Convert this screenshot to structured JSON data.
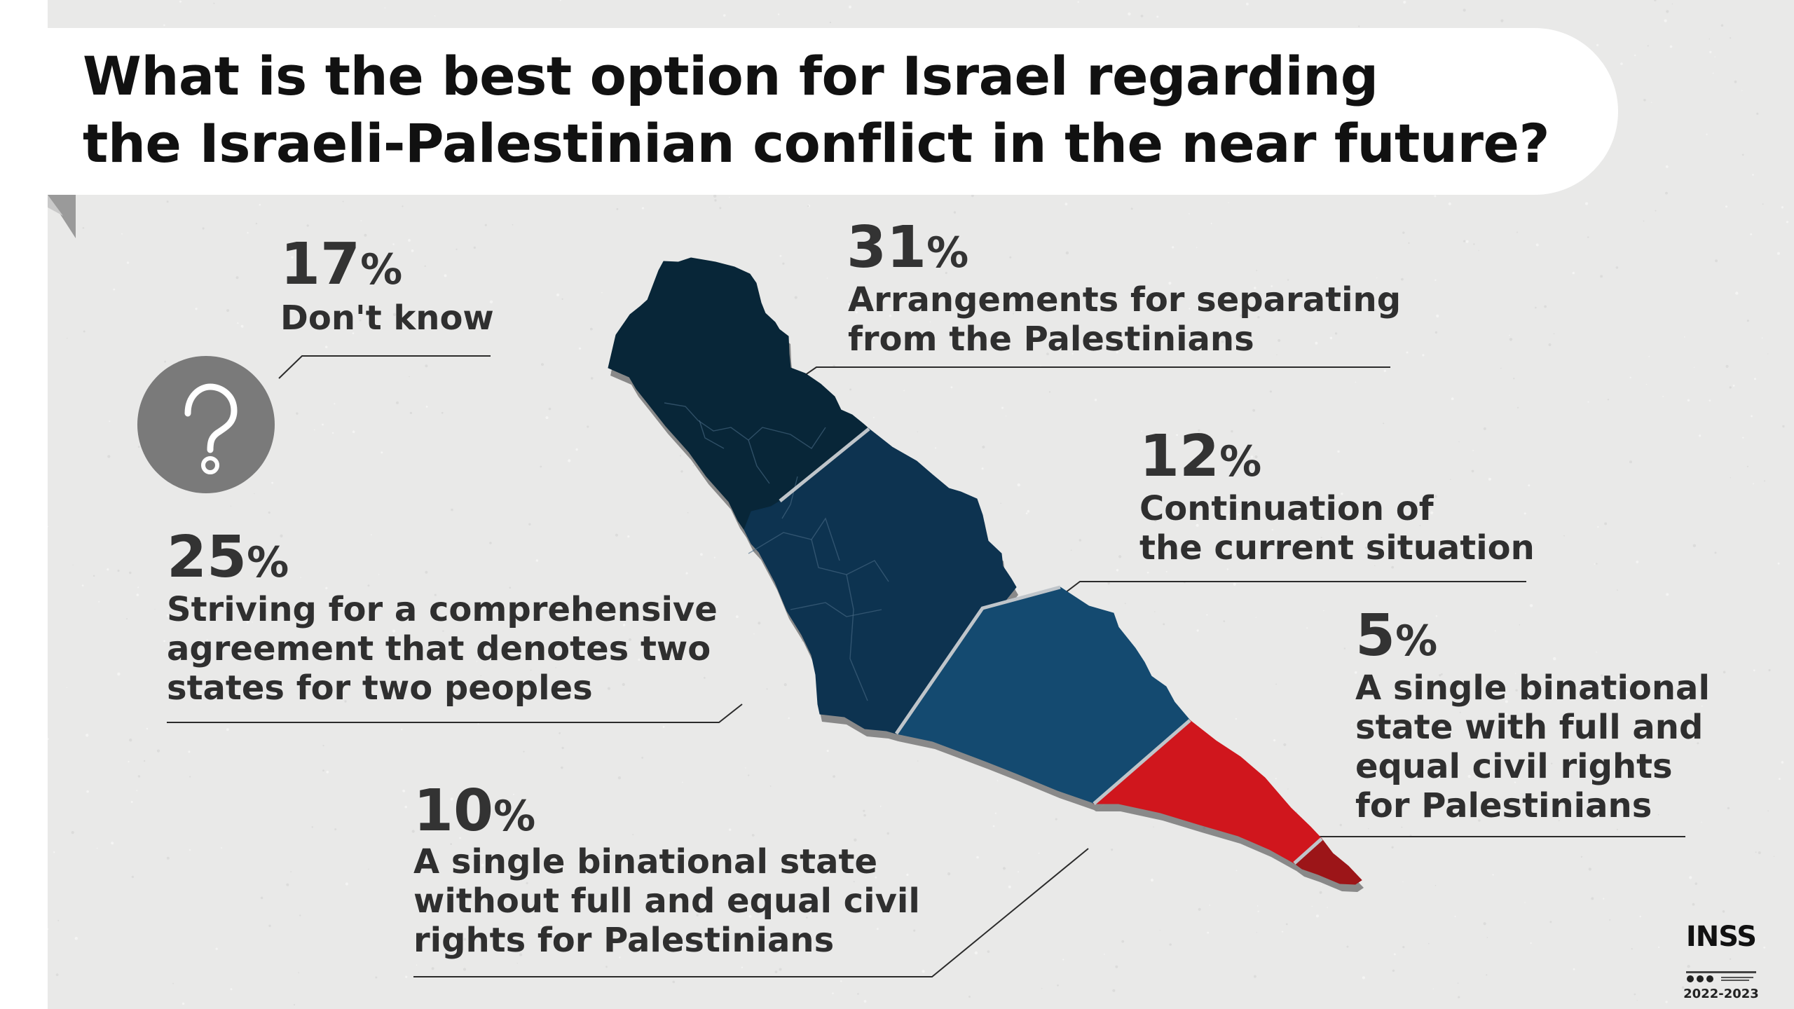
{
  "title": {
    "line1": "What is the best option for Israel regarding",
    "line2": "the Israeli-Palestinian conflict in the near future?"
  },
  "colors": {
    "navy_dark": "#082638",
    "navy_mid": "#0d3350",
    "navy_light": "#144a70",
    "red": "#d0161d",
    "dark_red": "#9c1518",
    "background": "#e9e9e8"
  },
  "icons": {
    "dont_know": "question-mark-icon"
  },
  "chart_data": {
    "type": "pie",
    "title": "What is the best option for Israel regarding the Israeli-Palestinian conflict in the near future?",
    "unit": "%",
    "slices": [
      {
        "id": "separation",
        "value": 31,
        "value_text": "31",
        "sign": "%",
        "label_lines": [
          "Arrangements for separating",
          "from the Palestinians"
        ],
        "color": "#082638"
      },
      {
        "id": "two_states",
        "value": 25,
        "value_text": "25",
        "sign": "%",
        "label_lines": [
          "Striving for a comprehensive",
          "agreement that denotes two",
          "states for two peoples"
        ],
        "color": "#0d3350"
      },
      {
        "id": "dont_know",
        "value": 17,
        "value_text": "17",
        "sign": "%",
        "label_lines": [
          "Don't know"
        ],
        "color": "#7a7a7a"
      },
      {
        "id": "current",
        "value": 12,
        "value_text": "12",
        "sign": "%",
        "label_lines": [
          "Continuation of",
          "the current situation"
        ],
        "color": "#144a70"
      },
      {
        "id": "binational_without",
        "value": 10,
        "value_text": "10",
        "sign": "%",
        "label_lines": [
          "A single binational state",
          "without full and equal civil",
          "rights for Palestinians"
        ],
        "color": "#d0161d"
      },
      {
        "id": "binational_full",
        "value": 5,
        "value_text": "5",
        "sign": "%",
        "label_lines": [
          "A single binational",
          "state with full and",
          "equal civil rights",
          "for Palestinians"
        ],
        "color": "#9c1518"
      }
    ]
  },
  "logo": {
    "word": "INSS",
    "years": "2022-2023"
  }
}
